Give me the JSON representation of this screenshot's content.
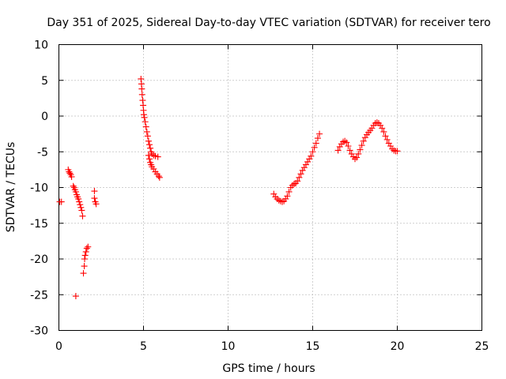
{
  "chart_data": {
    "type": "scatter",
    "title": "Day 351 of 2025, Sidereal Day-to-day VTEC variation (SDTVAR) for receiver tero",
    "xlabel": "GPS time / hours",
    "ylabel": "SDTVAR / TECUs",
    "xlim": [
      0,
      25
    ],
    "ylim": [
      -30,
      10
    ],
    "xticks": [
      0,
      5,
      10,
      15,
      20,
      25
    ],
    "yticks": [
      -30,
      -25,
      -20,
      -15,
      -10,
      -5,
      0,
      5,
      10
    ],
    "grid": true,
    "marker": "plus",
    "color": "#ff0000",
    "series": [
      {
        "name": "SDTVAR",
        "points": [
          [
            0.05,
            -12.0
          ],
          [
            0.15,
            -12.0
          ],
          [
            0.55,
            -7.5
          ],
          [
            0.6,
            -7.8
          ],
          [
            0.65,
            -8.0
          ],
          [
            0.7,
            -8.2
          ],
          [
            0.75,
            -8.5
          ],
          [
            0.85,
            -9.8
          ],
          [
            0.9,
            -10.0
          ],
          [
            0.95,
            -10.3
          ],
          [
            1.0,
            -10.6
          ],
          [
            1.05,
            -11.0
          ],
          [
            1.1,
            -11.3
          ],
          [
            1.15,
            -11.6
          ],
          [
            1.2,
            -12.0
          ],
          [
            1.25,
            -12.4
          ],
          [
            1.3,
            -12.8
          ],
          [
            1.35,
            -13.2
          ],
          [
            1.4,
            -14.0
          ],
          [
            1.0,
            -25.2
          ],
          [
            1.45,
            -22.0
          ],
          [
            1.5,
            -21.0
          ],
          [
            1.52,
            -20.0
          ],
          [
            1.55,
            -19.5
          ],
          [
            1.6,
            -19.0
          ],
          [
            1.65,
            -18.5
          ],
          [
            1.72,
            -18.3
          ],
          [
            2.1,
            -10.5
          ],
          [
            2.1,
            -11.5
          ],
          [
            2.15,
            -12.0
          ],
          [
            2.2,
            -12.3
          ],
          [
            4.85,
            5.2
          ],
          [
            4.88,
            4.5
          ],
          [
            4.9,
            3.8
          ],
          [
            4.92,
            3.0
          ],
          [
            4.95,
            2.2
          ],
          [
            4.98,
            1.5
          ],
          [
            5.0,
            0.8
          ],
          [
            5.02,
            0.2
          ],
          [
            5.05,
            -0.2
          ],
          [
            5.1,
            -0.8
          ],
          [
            5.15,
            -1.5
          ],
          [
            5.2,
            -2.2
          ],
          [
            5.25,
            -2.8
          ],
          [
            5.3,
            -3.5
          ],
          [
            5.35,
            -4.0
          ],
          [
            5.4,
            -4.5
          ],
          [
            5.45,
            -5.0
          ],
          [
            5.5,
            -5.3
          ],
          [
            5.6,
            -5.5
          ],
          [
            5.7,
            -5.6
          ],
          [
            5.85,
            -5.7
          ],
          [
            5.3,
            -5.5
          ],
          [
            5.35,
            -6.0
          ],
          [
            5.4,
            -6.5
          ],
          [
            5.45,
            -6.8
          ],
          [
            5.5,
            -7.1
          ],
          [
            5.6,
            -7.4
          ],
          [
            5.7,
            -7.8
          ],
          [
            5.8,
            -8.1
          ],
          [
            5.9,
            -8.4
          ],
          [
            5.95,
            -8.6
          ],
          [
            12.7,
            -10.9
          ],
          [
            12.8,
            -11.3
          ],
          [
            12.9,
            -11.6
          ],
          [
            13.0,
            -11.8
          ],
          [
            13.1,
            -11.9
          ],
          [
            13.2,
            -12.0
          ],
          [
            13.3,
            -11.9
          ],
          [
            13.4,
            -11.6
          ],
          [
            13.5,
            -11.2
          ],
          [
            13.6,
            -10.6
          ],
          [
            13.7,
            -10.0
          ],
          [
            13.8,
            -9.7
          ],
          [
            13.9,
            -9.5
          ],
          [
            14.0,
            -9.4
          ],
          [
            14.1,
            -9.1
          ],
          [
            14.2,
            -8.6
          ],
          [
            14.3,
            -8.1
          ],
          [
            14.4,
            -7.6
          ],
          [
            14.5,
            -7.2
          ],
          [
            14.6,
            -6.8
          ],
          [
            14.7,
            -6.4
          ],
          [
            14.8,
            -6.0
          ],
          [
            14.9,
            -5.6
          ],
          [
            15.0,
            -5.0
          ],
          [
            15.1,
            -4.4
          ],
          [
            15.2,
            -3.8
          ],
          [
            15.3,
            -3.1
          ],
          [
            15.4,
            -2.5
          ],
          [
            16.5,
            -4.8
          ],
          [
            16.6,
            -4.3
          ],
          [
            16.7,
            -3.9
          ],
          [
            16.8,
            -3.6
          ],
          [
            16.9,
            -3.5
          ],
          [
            17.0,
            -3.7
          ],
          [
            17.1,
            -4.2
          ],
          [
            17.2,
            -4.8
          ],
          [
            17.3,
            -5.3
          ],
          [
            17.4,
            -5.7
          ],
          [
            17.5,
            -6.0
          ],
          [
            17.6,
            -5.8
          ],
          [
            17.7,
            -5.3
          ],
          [
            17.8,
            -4.7
          ],
          [
            17.9,
            -4.1
          ],
          [
            18.0,
            -3.5
          ],
          [
            18.1,
            -3.0
          ],
          [
            18.2,
            -2.6
          ],
          [
            18.3,
            -2.3
          ],
          [
            18.4,
            -2.0
          ],
          [
            18.5,
            -1.7
          ],
          [
            18.6,
            -1.3
          ],
          [
            18.7,
            -1.0
          ],
          [
            18.8,
            -0.9
          ],
          [
            18.9,
            -1.0
          ],
          [
            19.0,
            -1.3
          ],
          [
            19.1,
            -1.7
          ],
          [
            19.2,
            -2.2
          ],
          [
            19.3,
            -2.8
          ],
          [
            19.4,
            -3.3
          ],
          [
            19.5,
            -3.8
          ],
          [
            19.6,
            -4.2
          ],
          [
            19.7,
            -4.6
          ],
          [
            19.8,
            -4.8
          ],
          [
            19.9,
            -4.9
          ],
          [
            20.0,
            -4.9
          ]
        ]
      }
    ]
  }
}
